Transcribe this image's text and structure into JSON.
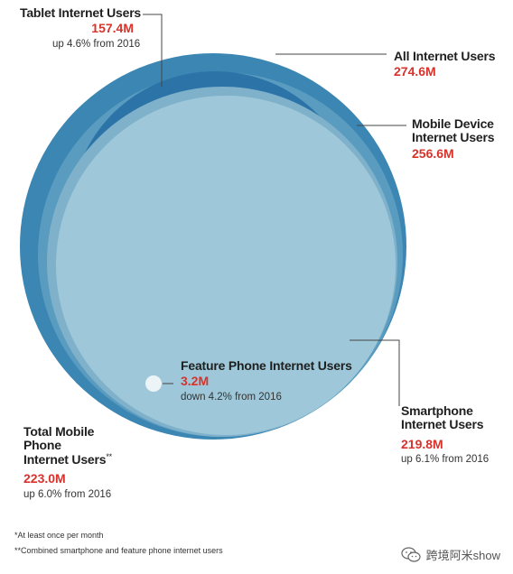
{
  "labels": {
    "tablet": {
      "name": "Tablet Internet Users",
      "value": "157.4M",
      "change": "up 4.6% from 2016"
    },
    "all": {
      "name": "All Internet Users",
      "value": "274.6M"
    },
    "mobile_device": {
      "name_line1": "Mobile Device",
      "name_line2": "Internet Users",
      "value": "256.6M"
    },
    "feature_phone": {
      "name": "Feature Phone Internet Users",
      "value": "3.2M",
      "change": "down 4.2% from 2016"
    },
    "smartphone": {
      "name_line1": "Smartphone",
      "name_line2": "Internet Users",
      "value": "219.8M",
      "change": "up 6.1% from 2016"
    },
    "total_mobile_phone": {
      "name_line1": "Total Mobile",
      "name_line2": "Phone",
      "name_line3": "Internet Users",
      "suffix": "**",
      "value": "223.0M",
      "change": "up 6.0% from 2016"
    }
  },
  "footnotes": {
    "note1": "*At least once per month",
    "note2": "**Combined smartphone and feature phone internet users"
  },
  "watermark": {
    "text": "跨境阿米show",
    "icon": "wechat-icon"
  },
  "colors": {
    "all": "#3b86b3",
    "mobile_device": "#5a9cc0",
    "tablet": "#2c74a8",
    "total_mobile_phone": "#7fb1cb",
    "smartphone": "#9ec8d9",
    "feature_phone": "#ecf4f8",
    "value_text": "#d8322b"
  }
}
